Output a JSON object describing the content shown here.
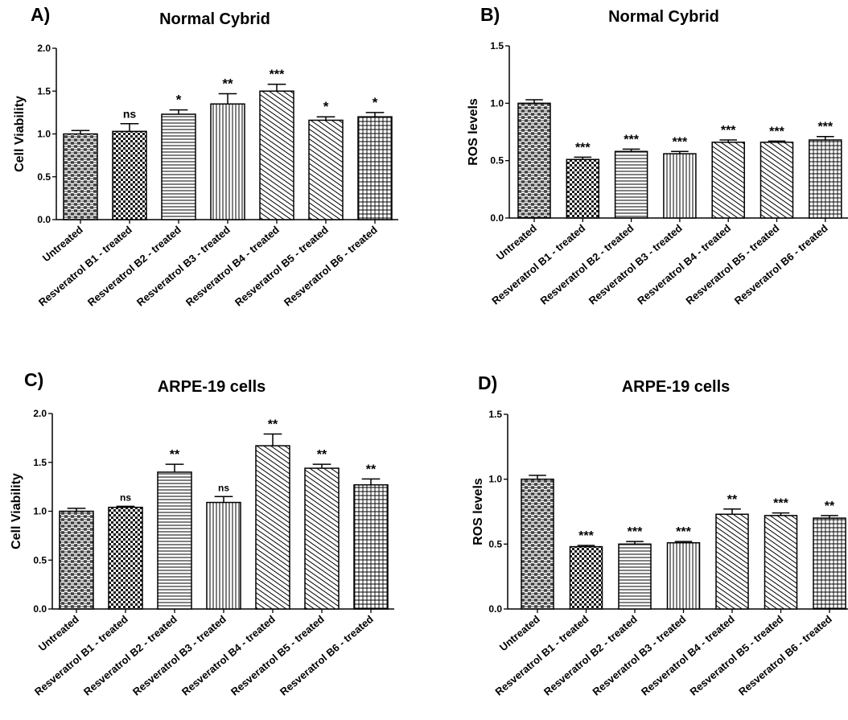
{
  "figure_title": "",
  "chart_data": [
    {
      "panel": "A)",
      "type": "bar",
      "title": "Normal Cybrid",
      "xlabel": "",
      "ylabel": "Cell Viability",
      "ylim": [
        0,
        2.0
      ],
      "yticks": [
        "0.0",
        "0.5",
        "1.0",
        "1.5",
        "2.0"
      ],
      "categories": [
        "Untreated",
        "Resveratrol B1 - treated",
        "Resveratrol B2 - treated",
        "Resveratrol B3 - treated",
        "Resveratrol B4 - treated",
        "Resveratrol B5 - treated",
        "Resveratrol B6 - treated"
      ],
      "values": [
        1.0,
        1.03,
        1.23,
        1.35,
        1.5,
        1.16,
        1.2
      ],
      "errors": [
        0.04,
        0.09,
        0.05,
        0.12,
        0.08,
        0.04,
        0.05
      ],
      "significance": [
        "",
        "ns",
        "*",
        "**",
        "***",
        "*",
        "*"
      ],
      "patterns": [
        "weave",
        "checker",
        "hlines",
        "vlines",
        "diag",
        "diag",
        "grid"
      ],
      "grid": false,
      "legend": "none"
    },
    {
      "panel": "B)",
      "type": "bar",
      "title": "Normal Cybrid",
      "xlabel": "",
      "ylabel": "ROS levels",
      "ylim": [
        0,
        1.5
      ],
      "yticks": [
        "0.0",
        "0.5",
        "1.0",
        "1.5"
      ],
      "categories": [
        "Untreated",
        "Resveratrol B1 - treated",
        "Resveratrol B2 - treated",
        "Resveratrol B3 - treated",
        "Resveratrol B4 - treated",
        "Resveratrol B5 - treated",
        "Resveratrol B6 - treated"
      ],
      "values": [
        1.0,
        0.51,
        0.58,
        0.56,
        0.66,
        0.66,
        0.68
      ],
      "errors": [
        0.03,
        0.02,
        0.02,
        0.02,
        0.02,
        0.01,
        0.03
      ],
      "significance": [
        "",
        "***",
        "***",
        "***",
        "***",
        "***",
        "***"
      ],
      "patterns": [
        "weave",
        "checker",
        "hlines",
        "vlines",
        "diag",
        "diag",
        "grid"
      ],
      "grid": false,
      "legend": "none"
    },
    {
      "panel": "C)",
      "type": "bar",
      "title": "ARPE-19 cells",
      "xlabel": "",
      "ylabel": "Cell Viability",
      "ylim": [
        0,
        2.0
      ],
      "yticks": [
        "0.0",
        "0.5",
        "1.0",
        "1.5",
        "2.0"
      ],
      "categories": [
        "Untreated",
        "Resveratrol B1 - treated",
        "Resveratrol B2 - treated",
        "Resveratrol B3 - treated",
        "Resveratrol B4 - treated",
        "Resveratrol B5 - treated",
        "Resveratrol B6 - treated"
      ],
      "values": [
        1.0,
        1.04,
        1.4,
        1.09,
        1.67,
        1.44,
        1.27
      ],
      "errors": [
        0.03,
        0.01,
        0.08,
        0.06,
        0.12,
        0.04,
        0.06
      ],
      "significance": [
        "",
        "ns",
        "**",
        "ns",
        "**",
        "**",
        "**"
      ],
      "patterns": [
        "weave",
        "checker",
        "hlines",
        "vlines",
        "diag",
        "diag",
        "grid"
      ],
      "grid": false,
      "legend": "none"
    },
    {
      "panel": "D)",
      "type": "bar",
      "title": "ARPE-19 cells",
      "xlabel": "",
      "ylabel": "ROS levels",
      "ylim": [
        0,
        1.5
      ],
      "yticks": [
        "0.0",
        "0.5",
        "1.0",
        "1.5"
      ],
      "categories": [
        "Untreated",
        "Resveratrol B1 - treated",
        "Resveratrol B2 - treated",
        "Resveratrol B3 - treated",
        "Resveratrol B4 - treated",
        "Resveratrol B5 - treated",
        "Resveratrol B6 - treated"
      ],
      "values": [
        1.0,
        0.48,
        0.5,
        0.51,
        0.73,
        0.72,
        0.7
      ],
      "errors": [
        0.03,
        0.01,
        0.02,
        0.01,
        0.04,
        0.02,
        0.02
      ],
      "significance": [
        "",
        "***",
        "***",
        "***",
        "**",
        "***",
        "**"
      ],
      "patterns": [
        "weave",
        "checker",
        "hlines",
        "vlines",
        "diag",
        "diag",
        "grid"
      ],
      "grid": false,
      "legend": "none"
    }
  ]
}
